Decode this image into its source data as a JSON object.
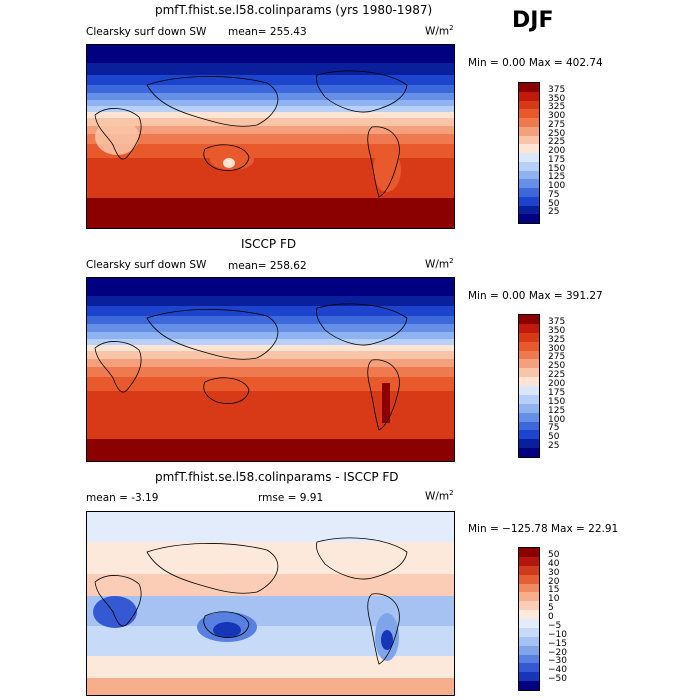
{
  "season": "DJF",
  "panels": [
    {
      "title": "pmfT.fhist.se.l58.colinparams (yrs 1980-1987)",
      "variable": "Clearsky surf down SW",
      "stat1": "mean= 255.43",
      "stat2": "",
      "units": "W/m",
      "units_sup": "2",
      "minmax": "Min =    0.00 Max = 402.74",
      "colorbar": {
        "labels": [
          "375",
          "350",
          "325",
          "300",
          "275",
          "250",
          "225",
          "200",
          "175",
          "150",
          "125",
          "100",
          "75",
          "50",
          "25"
        ],
        "colors": [
          "#8b0000",
          "#c1190b",
          "#d83a17",
          "#e85a2c",
          "#ef7a50",
          "#f5a07c",
          "#f9c5a8",
          "#fde4d5",
          "#dbe8fb",
          "#b8d0f7",
          "#8fb3f0",
          "#6690e8",
          "#3c68dc",
          "#1c44cc",
          "#0a1f9c",
          "#000080"
        ]
      }
    },
    {
      "title": "ISCCP FD",
      "variable": "Clearsky surf down SW",
      "stat1": "mean= 258.62",
      "stat2": "",
      "units": "W/m",
      "units_sup": "2",
      "minmax": "Min =    0.00 Max = 391.27",
      "colorbar": {
        "labels": [
          "375",
          "350",
          "325",
          "300",
          "275",
          "250",
          "225",
          "200",
          "175",
          "150",
          "125",
          "100",
          "75",
          "50",
          "25"
        ],
        "colors": [
          "#8b0000",
          "#c1190b",
          "#d83a17",
          "#e85a2c",
          "#ef7a50",
          "#f5a07c",
          "#f9c5a8",
          "#fde4d5",
          "#dbe8fb",
          "#b8d0f7",
          "#8fb3f0",
          "#6690e8",
          "#3c68dc",
          "#1c44cc",
          "#0a1f9c",
          "#000080"
        ]
      }
    },
    {
      "title": "pmfT.fhist.se.l58.colinparams - ISCCP FD",
      "variable": "",
      "stat1": "mean =   -3.19",
      "stat2": "rmse =    9.91",
      "units": "W/m",
      "units_sup": "2",
      "minmax": "Min = −125.78 Max =  22.91",
      "colorbar": {
        "labels": [
          "50",
          "40",
          "30",
          "20",
          "15",
          "10",
          "5",
          "0",
          "−5",
          "−10",
          "−15",
          "−20",
          "−30",
          "−40",
          "−50"
        ],
        "colors": [
          "#8b0000",
          "#b3160c",
          "#d03a1d",
          "#e45e36",
          "#f08a63",
          "#f6ae8d",
          "#fbcdb6",
          "#fde8dc",
          "#e2ecfb",
          "#c7daf8",
          "#a5c2f2",
          "#7fa4ea",
          "#5780e0",
          "#3459d2",
          "#1536b8",
          "#000080"
        ]
      }
    }
  ]
}
